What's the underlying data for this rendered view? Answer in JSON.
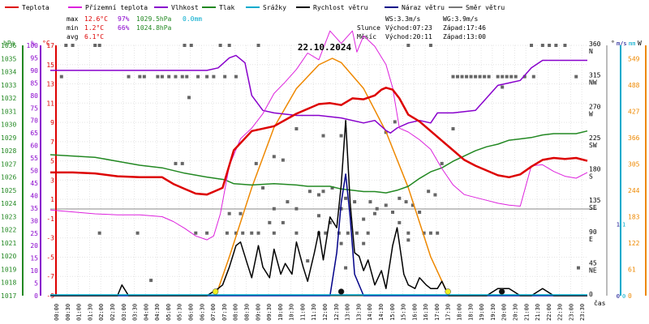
{
  "chart_data": {
    "type": "line",
    "title": "22.10.2024",
    "xlabel": "čas",
    "legend": [
      {
        "label": "Teplota",
        "color": "#dd0000"
      },
      {
        "label": "Přízemní teplota",
        "color": "#dd22dd"
      },
      {
        "label": "Vlhkost",
        "color": "#8800cc"
      },
      {
        "label": "Tlak",
        "color": "#228822"
      },
      {
        "label": "Srážky",
        "color": "#00aacc"
      },
      {
        "label": "Rychlost větru",
        "color": "#000000"
      },
      {
        "label": "Náraz větru",
        "color": "#000088"
      },
      {
        "label": "Směr větru",
        "color": "#777777"
      }
    ],
    "stats": {
      "max_label": "max",
      "min_label": "min",
      "avg_label": "avg",
      "max_temp": "12.6°C",
      "max_hum": "97%",
      "max_press": "1029.5hPa",
      "max_rain": "0.0mm",
      "min_temp": "1.2°C",
      "min_hum": "66%",
      "min_press": "1024.8hPa",
      "avg_temp": "6.1°C",
      "ws": "WS:3.3m/s",
      "wg": "WG:3.9m/s",
      "sun_label": "Slunce",
      "sunrise": "Východ:07:23",
      "sunset": "Západ:17:46",
      "moon_label": "Měsíc",
      "moonrise": "Východ:20:11",
      "moonset": "Západ:13:00"
    },
    "axis_units": {
      "pressure": "hPa",
      "humidity": "%",
      "temperature": "°C",
      "direction": "°",
      "wind": "m/s",
      "rain": "mm",
      "solar": "W"
    },
    "ylim": {
      "temperature": [
        -9,
        17
      ],
      "humidity": [
        0,
        100
      ],
      "pressure": [
        1017,
        1036
      ],
      "wind": [
        0,
        3.5
      ],
      "solar": [
        0,
        580
      ]
    },
    "temperature_ticks": [
      "17",
      "15",
      "13",
      "11",
      "9",
      "7",
      "5",
      "3",
      "1",
      "-1",
      "-3",
      "-5",
      "-7",
      "-9"
    ],
    "humidity_ticks": [
      "100",
      "95",
      "90",
      "85",
      "80",
      "75",
      "70",
      "65",
      "60",
      "55",
      "50",
      "45",
      "40",
      "35",
      "30",
      "25",
      "20",
      "15",
      "10",
      "5",
      "0"
    ],
    "pressure_ticks": [
      "1036",
      "1035",
      "1034",
      "1033",
      "1032",
      "1031",
      "1030",
      "1029",
      "1028",
      "1027",
      "1026",
      "1025",
      "1024",
      "1023",
      "1022",
      "1021",
      "1020",
      "1019",
      "1018",
      "1017"
    ],
    "direction_ticks": [
      {
        "deg": "360",
        "dir": "N"
      },
      {
        "deg": "315",
        "dir": "NW"
      },
      {
        "deg": "270",
        "dir": "W"
      },
      {
        "deg": "225",
        "dir": "SW"
      },
      {
        "deg": "180",
        "dir": "S"
      },
      {
        "deg": "135",
        "dir": "SE"
      },
      {
        "deg": "90",
        "dir": "E"
      },
      {
        "deg": "45",
        "dir": "NE"
      },
      {
        "deg": "0",
        "dir": ""
      }
    ],
    "wind_ticks": [
      "1",
      "0"
    ],
    "rain_ticks": [
      "1",
      "0"
    ],
    "solar_ticks": [
      "549",
      "488",
      "427",
      "366",
      "305",
      "244",
      "183",
      "122",
      "61",
      "0"
    ],
    "time_ticks": [
      "00:00",
      "00:30",
      "01:00",
      "01:30",
      "02:00",
      "02:30",
      "03:00",
      "03:30",
      "04:00",
      "04:30",
      "05:00",
      "05:30",
      "06:00",
      "06:30",
      "07:00",
      "07:30",
      "08:00",
      "08:30",
      "09:00",
      "09:30",
      "10:00",
      "10:30",
      "11:00",
      "11:30",
      "12:00",
      "12:30",
      "13:00",
      "13:30",
      "14:00",
      "14:30",
      "15:00",
      "15:30",
      "16:00",
      "16:30",
      "17:00",
      "17:30",
      "18:00",
      "18:30",
      "19:00",
      "19:30",
      "20:00",
      "20:30",
      "21:00",
      "21:30",
      "22:00",
      "22:30",
      "23:00",
      "23:30"
    ],
    "series": [
      {
        "name": "Teplota",
        "axis": "temperature",
        "x": [
          0,
          1,
          2,
          3,
          4,
          5,
          5.5,
          6,
          6.5,
          7,
          7.4,
          7.7,
          8.2,
          9,
          10,
          11,
          12,
          12.5,
          13,
          13.5,
          14,
          14.5,
          14.8,
          15,
          15.3,
          15.6,
          16,
          16.5,
          17,
          17.5,
          18,
          18.5,
          19,
          19.5,
          20,
          20.5,
          21,
          21.5,
          22,
          22.5,
          23,
          23.5,
          24
        ],
        "y": [
          3.8,
          3.8,
          3.7,
          3.4,
          3.3,
          3.3,
          2.6,
          2.1,
          1.6,
          1.5,
          1.9,
          2.2,
          6.1,
          8.1,
          8.6,
          9.9,
          10.9,
          11.0,
          10.8,
          11.5,
          11.4,
          11.8,
          12.4,
          12.6,
          12.4,
          11.5,
          9.8,
          9.1,
          8.1,
          7.1,
          6.1,
          5.1,
          4.5,
          4.0,
          3.5,
          3.3,
          3.6,
          4.4,
          5.1,
          5.3,
          5.2,
          5.3,
          5.0
        ]
      },
      {
        "name": "Přízemní teplota",
        "axis": "temperature",
        "x": [
          0,
          1,
          2,
          3,
          4,
          5,
          5.5,
          6,
          6.5,
          7,
          7.3,
          7.6,
          8,
          8.5,
          9,
          9.5,
          10,
          10.5,
          11,
          11.5,
          12,
          12.5,
          13,
          13.5,
          13.7,
          14,
          14.5,
          15,
          15.3,
          15.6,
          16,
          16.5,
          17,
          17.5,
          18,
          18.5,
          19,
          19.5,
          20,
          20.5,
          21,
          21.5,
          22,
          22.5,
          23,
          23.5,
          24
        ],
        "y": [
          -0.1,
          -0.3,
          -0.5,
          -0.6,
          -0.6,
          -0.8,
          -1.3,
          -2.0,
          -2.8,
          -3.2,
          -2.8,
          -0.5,
          4.5,
          7.3,
          8.4,
          9.9,
          12.0,
          13.2,
          14.5,
          16.2,
          15.5,
          18.5,
          17.2,
          18.5,
          16.3,
          18.0,
          16.9,
          15.0,
          12.6,
          8.4,
          8.0,
          7.2,
          6.2,
          4.2,
          2.5,
          1.5,
          1.2,
          0.9,
          0.6,
          0.4,
          0.3,
          4.5,
          4.6,
          3.9,
          3.4,
          3.2,
          3.8
        ]
      },
      {
        "name": "Vlhkost",
        "axis": "humidity",
        "x": [
          0,
          2,
          4,
          6,
          7,
          7.5,
          8,
          8.3,
          8.7,
          9,
          9.5,
          10,
          11,
          12,
          13,
          14,
          14.5,
          15,
          15.2,
          15.5,
          16,
          16.5,
          17,
          17.3,
          17.7,
          18,
          19,
          20,
          20.5,
          21,
          21.5,
          22,
          23,
          24
        ],
        "y": [
          90,
          90,
          90,
          90,
          90,
          91,
          95,
          96,
          93,
          80,
          74,
          73,
          72,
          72,
          71,
          69,
          70,
          66,
          65,
          67,
          69,
          70,
          69,
          73,
          73,
          73,
          74,
          84,
          85,
          86,
          91,
          94,
          94,
          94
        ]
      },
      {
        "name": "Tlak",
        "axis": "pressure",
        "x": [
          0,
          1,
          2,
          3,
          4,
          5,
          6,
          7,
          7.8,
          8.2,
          9,
          10,
          11,
          11.5,
          12,
          12.5,
          13,
          13.5,
          14,
          14.5,
          15,
          15.5,
          16,
          16.5,
          17,
          17.5,
          18,
          18.5,
          19,
          19.5,
          20,
          20.5,
          21,
          21.5,
          22,
          22.5,
          23,
          23.5,
          24
        ],
        "y": [
          1027.7,
          1027.6,
          1027.5,
          1027.2,
          1026.9,
          1026.7,
          1026.3,
          1026.0,
          1025.8,
          1025.5,
          1025.4,
          1025.5,
          1025.4,
          1025.3,
          1025.3,
          1025.3,
          1025.1,
          1025.0,
          1024.9,
          1024.9,
          1024.8,
          1025.0,
          1025.3,
          1025.9,
          1026.4,
          1026.7,
          1027.2,
          1027.6,
          1028.0,
          1028.3,
          1028.5,
          1028.8,
          1028.9,
          1029.0,
          1029.2,
          1029.3,
          1029.3,
          1029.3,
          1029.5
        ]
      },
      {
        "name": "Rychlost větru",
        "axis": "wind",
        "x": [
          0,
          0.5,
          1,
          1.5,
          2,
          2.5,
          3,
          3.2,
          3.5,
          4,
          4.5,
          5,
          5.5,
          6,
          6.5,
          7,
          7.5,
          7.7,
          8,
          8.3,
          8.5,
          8.8,
          9,
          9.3,
          9.5,
          9.8,
          10,
          10.3,
          10.5,
          10.8,
          11,
          11.3,
          11.5,
          11.8,
          12,
          12.2,
          12.5,
          12.8,
          13,
          13.2,
          13.4,
          13.6,
          13.8,
          14,
          14.2,
          14.5,
          14.8,
          15,
          15.3,
          15.5,
          15.8,
          16,
          16.3,
          16.5,
          16.8,
          17,
          17.3,
          17.5,
          17.8,
          18,
          18.5,
          19,
          19.5,
          20,
          20.5,
          21,
          21.5,
          22,
          22.5,
          23,
          23.5,
          24
        ],
        "y": [
          0,
          0,
          0,
          0,
          0,
          0,
          0,
          0.15,
          0,
          0,
          0,
          0,
          0,
          0,
          0,
          0,
          0.1,
          0.15,
          0.4,
          0.7,
          0.75,
          0.45,
          0.25,
          0.7,
          0.4,
          0.25,
          0.65,
          0.3,
          0.45,
          0.3,
          0.75,
          0.4,
          0.2,
          0.6,
          0.9,
          0.5,
          1.1,
          0.95,
          1.55,
          2.45,
          1.3,
          0.6,
          0.55,
          0.35,
          0.5,
          0.15,
          0.35,
          0.1,
          0.7,
          0.95,
          0.3,
          0.15,
          0.1,
          0.25,
          0.15,
          0.1,
          0.1,
          0.2,
          0,
          0,
          0,
          0,
          0,
          0.1,
          0.1,
          0,
          0,
          0.1,
          0,
          0,
          0,
          0
        ]
      },
      {
        "name": "Náraz větru",
        "axis": "wind",
        "x": [
          0,
          12.5,
          12.8,
          13.0,
          13.2,
          13.4,
          13.6,
          14,
          24
        ],
        "y": [
          0,
          0,
          0.6,
          1.3,
          1.7,
          1.1,
          0.3,
          0,
          0
        ]
      },
      {
        "name": "Solar",
        "axis": "solar",
        "x": [
          7.4,
          8,
          9,
          10,
          11,
          12,
          12.6,
          13,
          14,
          15,
          16,
          17,
          17.8
        ],
        "y": [
          0,
          90,
          250,
          390,
          480,
          535,
          550,
          540,
          480,
          380,
          250,
          90,
          0
        ]
      }
    ],
    "wind_direction_points": [
      [
        0.7,
        360
      ],
      [
        1.0,
        360
      ],
      [
        2.0,
        360
      ],
      [
        2.2,
        360
      ],
      [
        6.0,
        360
      ],
      [
        6.3,
        360
      ],
      [
        7.6,
        360
      ],
      [
        8.0,
        360
      ],
      [
        9.3,
        360
      ],
      [
        16.0,
        360
      ],
      [
        17.0,
        360
      ],
      [
        21.5,
        360
      ],
      [
        22.0,
        360
      ],
      [
        22.3,
        360
      ],
      [
        22.6,
        360
      ],
      [
        23.0,
        360
      ],
      [
        0.5,
        315
      ],
      [
        3.5,
        315
      ],
      [
        4.0,
        315
      ],
      [
        4.2,
        315
      ],
      [
        4.8,
        315
      ],
      [
        5.0,
        315
      ],
      [
        5.3,
        315
      ],
      [
        5.6,
        315
      ],
      [
        5.9,
        315
      ],
      [
        6.1,
        315
      ],
      [
        6.6,
        315
      ],
      [
        7.0,
        315
      ],
      [
        7.3,
        315
      ],
      [
        7.8,
        315
      ],
      [
        8.3,
        315
      ],
      [
        18.0,
        315
      ],
      [
        18.2,
        315
      ],
      [
        18.4,
        315
      ],
      [
        18.6,
        315
      ],
      [
        18.8,
        315
      ],
      [
        19.0,
        315
      ],
      [
        19.2,
        315
      ],
      [
        19.4,
        315
      ],
      [
        19.6,
        315
      ],
      [
        20.0,
        315
      ],
      [
        20.2,
        315
      ],
      [
        20.4,
        315
      ],
      [
        20.6,
        315
      ],
      [
        20.8,
        315
      ],
      [
        21.2,
        315
      ],
      [
        21.6,
        315
      ],
      [
        23.5,
        315
      ],
      [
        6.2,
        285
      ],
      [
        15.4,
        250
      ],
      [
        20.2,
        300
      ],
      [
        17.5,
        190
      ],
      [
        10.0,
        200
      ],
      [
        10.4,
        195
      ],
      [
        9.2,
        190
      ],
      [
        5.6,
        190
      ],
      [
        5.9,
        190
      ],
      [
        9.5,
        155
      ],
      [
        10.0,
        125
      ],
      [
        10.6,
        135
      ],
      [
        11.0,
        125
      ],
      [
        11.6,
        150
      ],
      [
        12.0,
        145
      ],
      [
        12.2,
        150
      ],
      [
        12.6,
        155
      ],
      [
        13.0,
        125
      ],
      [
        13.2,
        140
      ],
      [
        13.6,
        135
      ],
      [
        14.0,
        110
      ],
      [
        14.3,
        135
      ],
      [
        14.6,
        125
      ],
      [
        15.0,
        130
      ],
      [
        15.3,
        120
      ],
      [
        15.6,
        140
      ],
      [
        15.9,
        135
      ],
      [
        16.2,
        130
      ],
      [
        16.5,
        120
      ],
      [
        16.9,
        150
      ],
      [
        17.2,
        145
      ],
      [
        11.0,
        240
      ],
      [
        12.2,
        230
      ],
      [
        13.0,
        230
      ],
      [
        15.0,
        235
      ],
      [
        18.0,
        240
      ],
      [
        2.2,
        90
      ],
      [
        3.9,
        90
      ],
      [
        6.5,
        90
      ],
      [
        7.0,
        90
      ],
      [
        7.9,
        90
      ],
      [
        8.3,
        90
      ],
      [
        8.6,
        90
      ],
      [
        9.0,
        90
      ],
      [
        9.3,
        90
      ],
      [
        10.0,
        90
      ],
      [
        11.0,
        90
      ],
      [
        12.0,
        90
      ],
      [
        12.3,
        90
      ],
      [
        12.9,
        90
      ],
      [
        13.3,
        90
      ],
      [
        13.7,
        90
      ],
      [
        14.2,
        90
      ],
      [
        16.0,
        90
      ],
      [
        16.7,
        90
      ],
      [
        17.0,
        90
      ],
      [
        17.3,
        90
      ],
      [
        8.0,
        118
      ],
      [
        8.5,
        118
      ],
      [
        9.8,
        105
      ],
      [
        10.4,
        105
      ],
      [
        12.0,
        115
      ],
      [
        12.5,
        105
      ],
      [
        14.5,
        118
      ],
      [
        15.6,
        105
      ],
      [
        23.6,
        40
      ],
      [
        13.0,
        75
      ],
      [
        14.0,
        75
      ],
      [
        16.0,
        80
      ],
      [
        11.5,
        50
      ],
      [
        13.2,
        40
      ],
      [
        4.5,
        22
      ]
    ],
    "markers": [
      {
        "label": "sunrise",
        "x": 7.38,
        "color": "#eeee22"
      },
      {
        "label": "sunset",
        "x": 17.77,
        "color": "#eeee22"
      },
      {
        "label": "moonset",
        "x": 13.0,
        "color": "#111111"
      },
      {
        "label": "moonrise",
        "x": 20.18,
        "color": "#111111"
      }
    ]
  }
}
